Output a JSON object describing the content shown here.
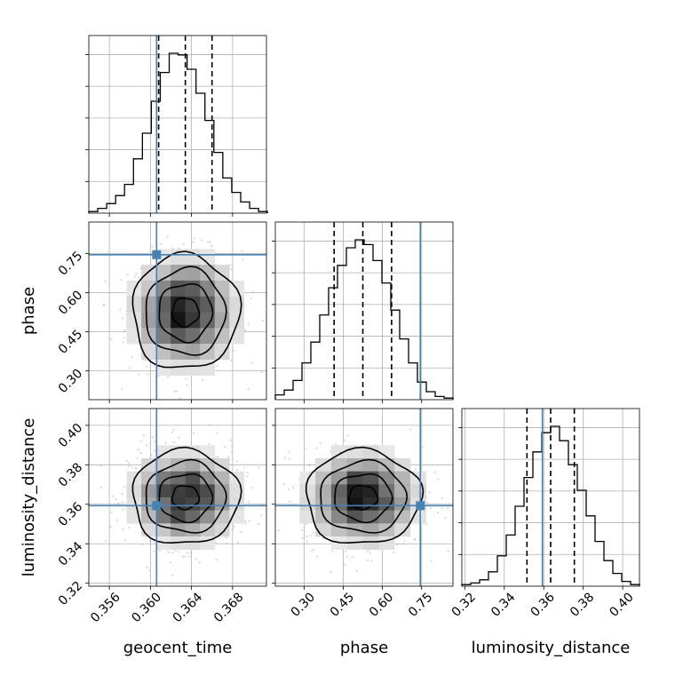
{
  "chart_data": {
    "type": "corner",
    "parameters": [
      "geocent_time",
      "phase",
      "luminosity_distance"
    ],
    "truths": {
      "geocent_time": 0.3606,
      "phase": 0.745,
      "luminosity_distance": 0.3593
    },
    "truth_color": "#4682b4",
    "quantiles": {
      "geocent_time": [
        0.3608,
        0.3634,
        0.366
      ],
      "phase": [
        0.415,
        0.525,
        0.635
      ],
      "luminosity_distance": [
        0.3515,
        0.3635,
        0.3755
      ]
    },
    "ranges": {
      "geocent_time": [
        0.354,
        0.3713
      ],
      "phase": [
        0.19,
        0.87
      ],
      "luminosity_distance": [
        0.3185,
        0.4085
      ]
    },
    "ticks": {
      "geocent_time": {
        "values": [
          0.356,
          0.36,
          0.364,
          0.368
        ],
        "labels": [
          "0.356",
          "0.360",
          "0.364",
          "0.368"
        ]
      },
      "phase": {
        "values": [
          0.3,
          0.45,
          0.6,
          0.75
        ],
        "labels": [
          "0.30",
          "0.45",
          "0.60",
          "0.75"
        ]
      },
      "luminosity_distance": {
        "values": [
          0.32,
          0.34,
          0.36,
          0.38,
          0.4
        ],
        "labels": [
          "0.32",
          "0.34",
          "0.36",
          "0.38",
          "0.40"
        ]
      }
    },
    "histograms": {
      "geocent_time": {
        "start": 0.354,
        "bin_width": 0.00087,
        "counts": [
          1,
          3,
          6,
          11,
          18,
          34,
          50,
          70,
          88,
          100,
          99,
          90,
          75,
          58,
          38,
          22,
          13,
          7,
          3,
          1
        ]
      },
      "phase": {
        "start": 0.19,
        "bin_width": 0.034,
        "counts": [
          3,
          6,
          12,
          23,
          36,
          53,
          70,
          84,
          95,
          100,
          97,
          87,
          73,
          56,
          38,
          23,
          11,
          5,
          2,
          1
        ]
      },
      "luminosity_distance": {
        "start": 0.3185,
        "bin_width": 0.0045,
        "counts": [
          1,
          2,
          4,
          9,
          19,
          32,
          50,
          68,
          84,
          96,
          100,
          91,
          76,
          60,
          44,
          28,
          16,
          8,
          3,
          1
        ]
      }
    },
    "grid": true,
    "contour_levels": 4
  }
}
